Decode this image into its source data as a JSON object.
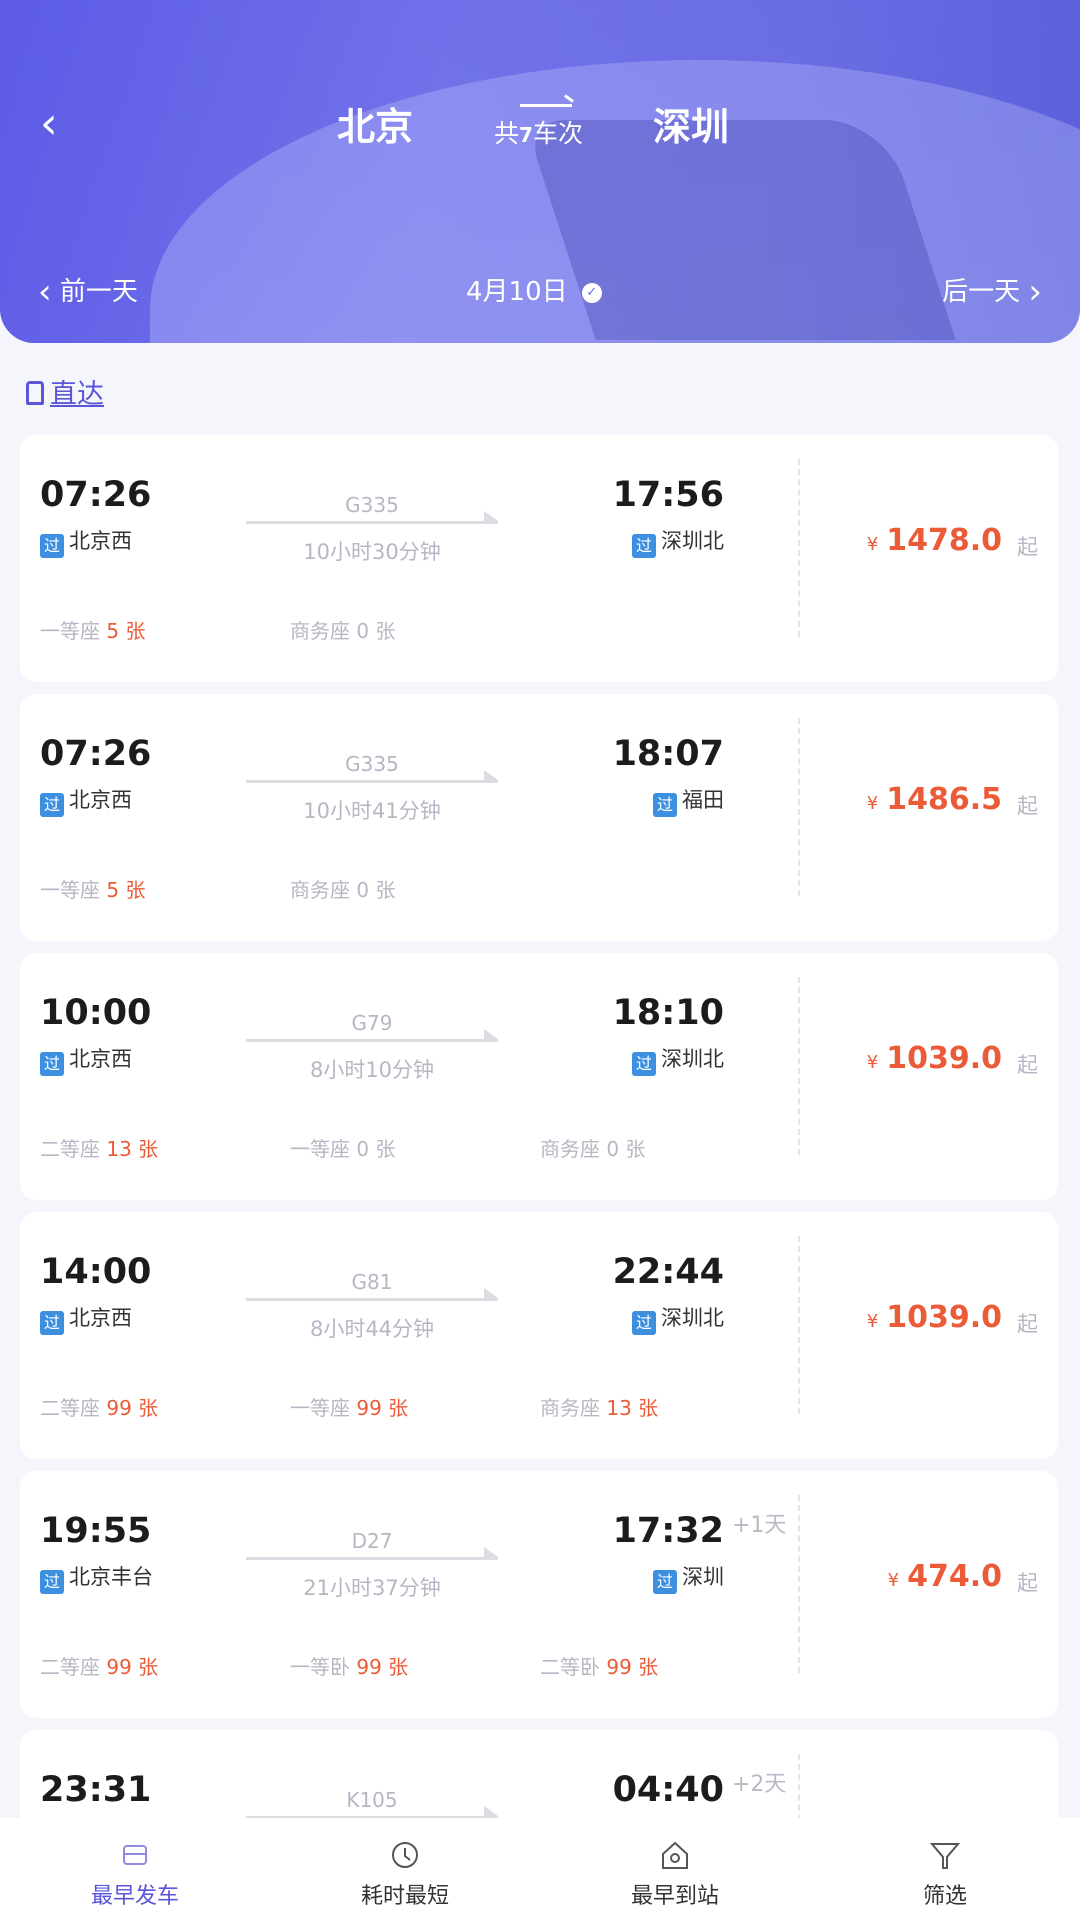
{
  "header": {
    "from": "北京",
    "to": "深圳",
    "count_prefix": "共",
    "count": "7",
    "count_suffix": "车次",
    "prev_day": "前一天",
    "date": "4月10日",
    "next_day": "后一天"
  },
  "filter": {
    "direct_label": "直达"
  },
  "colors": {
    "accent": "#5b55d8",
    "price": "#ec5b37",
    "tag": "#3d8fe0"
  },
  "trains": [
    {
      "dep_time": "07:26",
      "dep_station": "北京西",
      "code": "G335",
      "duration": "10小时30分钟",
      "arr_time": "17:56",
      "arr_station": "深圳北",
      "plus_day": "",
      "price": "1478.0",
      "seats": [
        {
          "type": "一等座",
          "count": "5",
          "unit": "张"
        },
        {
          "type": "商务座",
          "count": "0",
          "unit": "张"
        }
      ]
    },
    {
      "dep_time": "07:26",
      "dep_station": "北京西",
      "code": "G335",
      "duration": "10小时41分钟",
      "arr_time": "18:07",
      "arr_station": "福田",
      "plus_day": "",
      "price": "1486.5",
      "seats": [
        {
          "type": "一等座",
          "count": "5",
          "unit": "张"
        },
        {
          "type": "商务座",
          "count": "0",
          "unit": "张"
        }
      ]
    },
    {
      "dep_time": "10:00",
      "dep_station": "北京西",
      "code": "G79",
      "duration": "8小时10分钟",
      "arr_time": "18:10",
      "arr_station": "深圳北",
      "plus_day": "",
      "price": "1039.0",
      "seats": [
        {
          "type": "二等座",
          "count": "13",
          "unit": "张"
        },
        {
          "type": "一等座",
          "count": "0",
          "unit": "张"
        },
        {
          "type": "商务座",
          "count": "0",
          "unit": "张"
        }
      ]
    },
    {
      "dep_time": "14:00",
      "dep_station": "北京西",
      "code": "G81",
      "duration": "8小时44分钟",
      "arr_time": "22:44",
      "arr_station": "深圳北",
      "plus_day": "",
      "price": "1039.0",
      "seats": [
        {
          "type": "二等座",
          "count": "99",
          "unit": "张"
        },
        {
          "type": "一等座",
          "count": "99",
          "unit": "张"
        },
        {
          "type": "商务座",
          "count": "13",
          "unit": "张"
        }
      ]
    },
    {
      "dep_time": "19:55",
      "dep_station": "北京丰台",
      "code": "D27",
      "duration": "21小时37分钟",
      "arr_time": "17:32",
      "arr_station": "深圳",
      "plus_day": "+1天",
      "price": "474.0",
      "seats": [
        {
          "type": "二等座",
          "count": "99",
          "unit": "张"
        },
        {
          "type": "一等卧",
          "count": "99",
          "unit": "张"
        },
        {
          "type": "二等卧",
          "count": "99",
          "unit": "张"
        }
      ]
    },
    {
      "dep_time": "23:31",
      "dep_station": "",
      "code": "K105",
      "duration": "",
      "arr_time": "04:40",
      "arr_station": "",
      "plus_day": "+2天",
      "price": "",
      "seats": []
    }
  ],
  "common": {
    "via_tag": "过",
    "yen": "¥",
    "from_suffix": "起"
  },
  "bottom_nav": [
    {
      "label": "最早发车",
      "icon": "train-icon",
      "active": true
    },
    {
      "label": "耗时最短",
      "icon": "clock-icon",
      "active": false
    },
    {
      "label": "最早到站",
      "icon": "station-icon",
      "active": false
    },
    {
      "label": "筛选",
      "icon": "filter-icon",
      "active": false
    }
  ]
}
